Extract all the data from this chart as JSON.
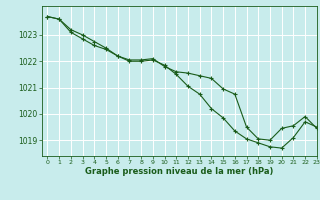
{
  "title": "Graphe pression niveau de la mer (hPa)",
  "background_color": "#c8ecec",
  "grid_color": "#ffffff",
  "line_color": "#1a5c1a",
  "xlim": [
    -0.5,
    23
  ],
  "ylim": [
    1018.4,
    1024.1
  ],
  "yticks": [
    1019,
    1020,
    1021,
    1022,
    1023
  ],
  "xticks": [
    0,
    1,
    2,
    3,
    4,
    5,
    6,
    7,
    8,
    9,
    10,
    11,
    12,
    13,
    14,
    15,
    16,
    17,
    18,
    19,
    20,
    21,
    22,
    23
  ],
  "series1_x": [
    0,
    1,
    2,
    3,
    4,
    5,
    6,
    7,
    8,
    9,
    10,
    11,
    12,
    13,
    14,
    15,
    16,
    17,
    18,
    19,
    20,
    21,
    22,
    23
  ],
  "series1_y": [
    1023.7,
    1023.6,
    1023.1,
    1022.85,
    1022.6,
    1022.45,
    1022.2,
    1022.05,
    1022.05,
    1022.1,
    1021.8,
    1021.6,
    1021.55,
    1021.45,
    1021.35,
    1020.95,
    1020.75,
    1019.5,
    1019.05,
    1019.0,
    1019.45,
    1019.55,
    1019.9,
    1019.45
  ],
  "series2_x": [
    0,
    1,
    2,
    3,
    4,
    5,
    6,
    7,
    8,
    9,
    10,
    11,
    12,
    13,
    14,
    15,
    16,
    17,
    18,
    19,
    20,
    21,
    22,
    23
  ],
  "series2_y": [
    1023.7,
    1023.6,
    1023.2,
    1023.0,
    1022.75,
    1022.5,
    1022.2,
    1022.0,
    1022.0,
    1022.05,
    1021.85,
    1021.5,
    1021.05,
    1020.75,
    1020.2,
    1019.85,
    1019.35,
    1019.05,
    1018.9,
    1018.75,
    1018.7,
    1019.1,
    1019.7,
    1019.5
  ]
}
